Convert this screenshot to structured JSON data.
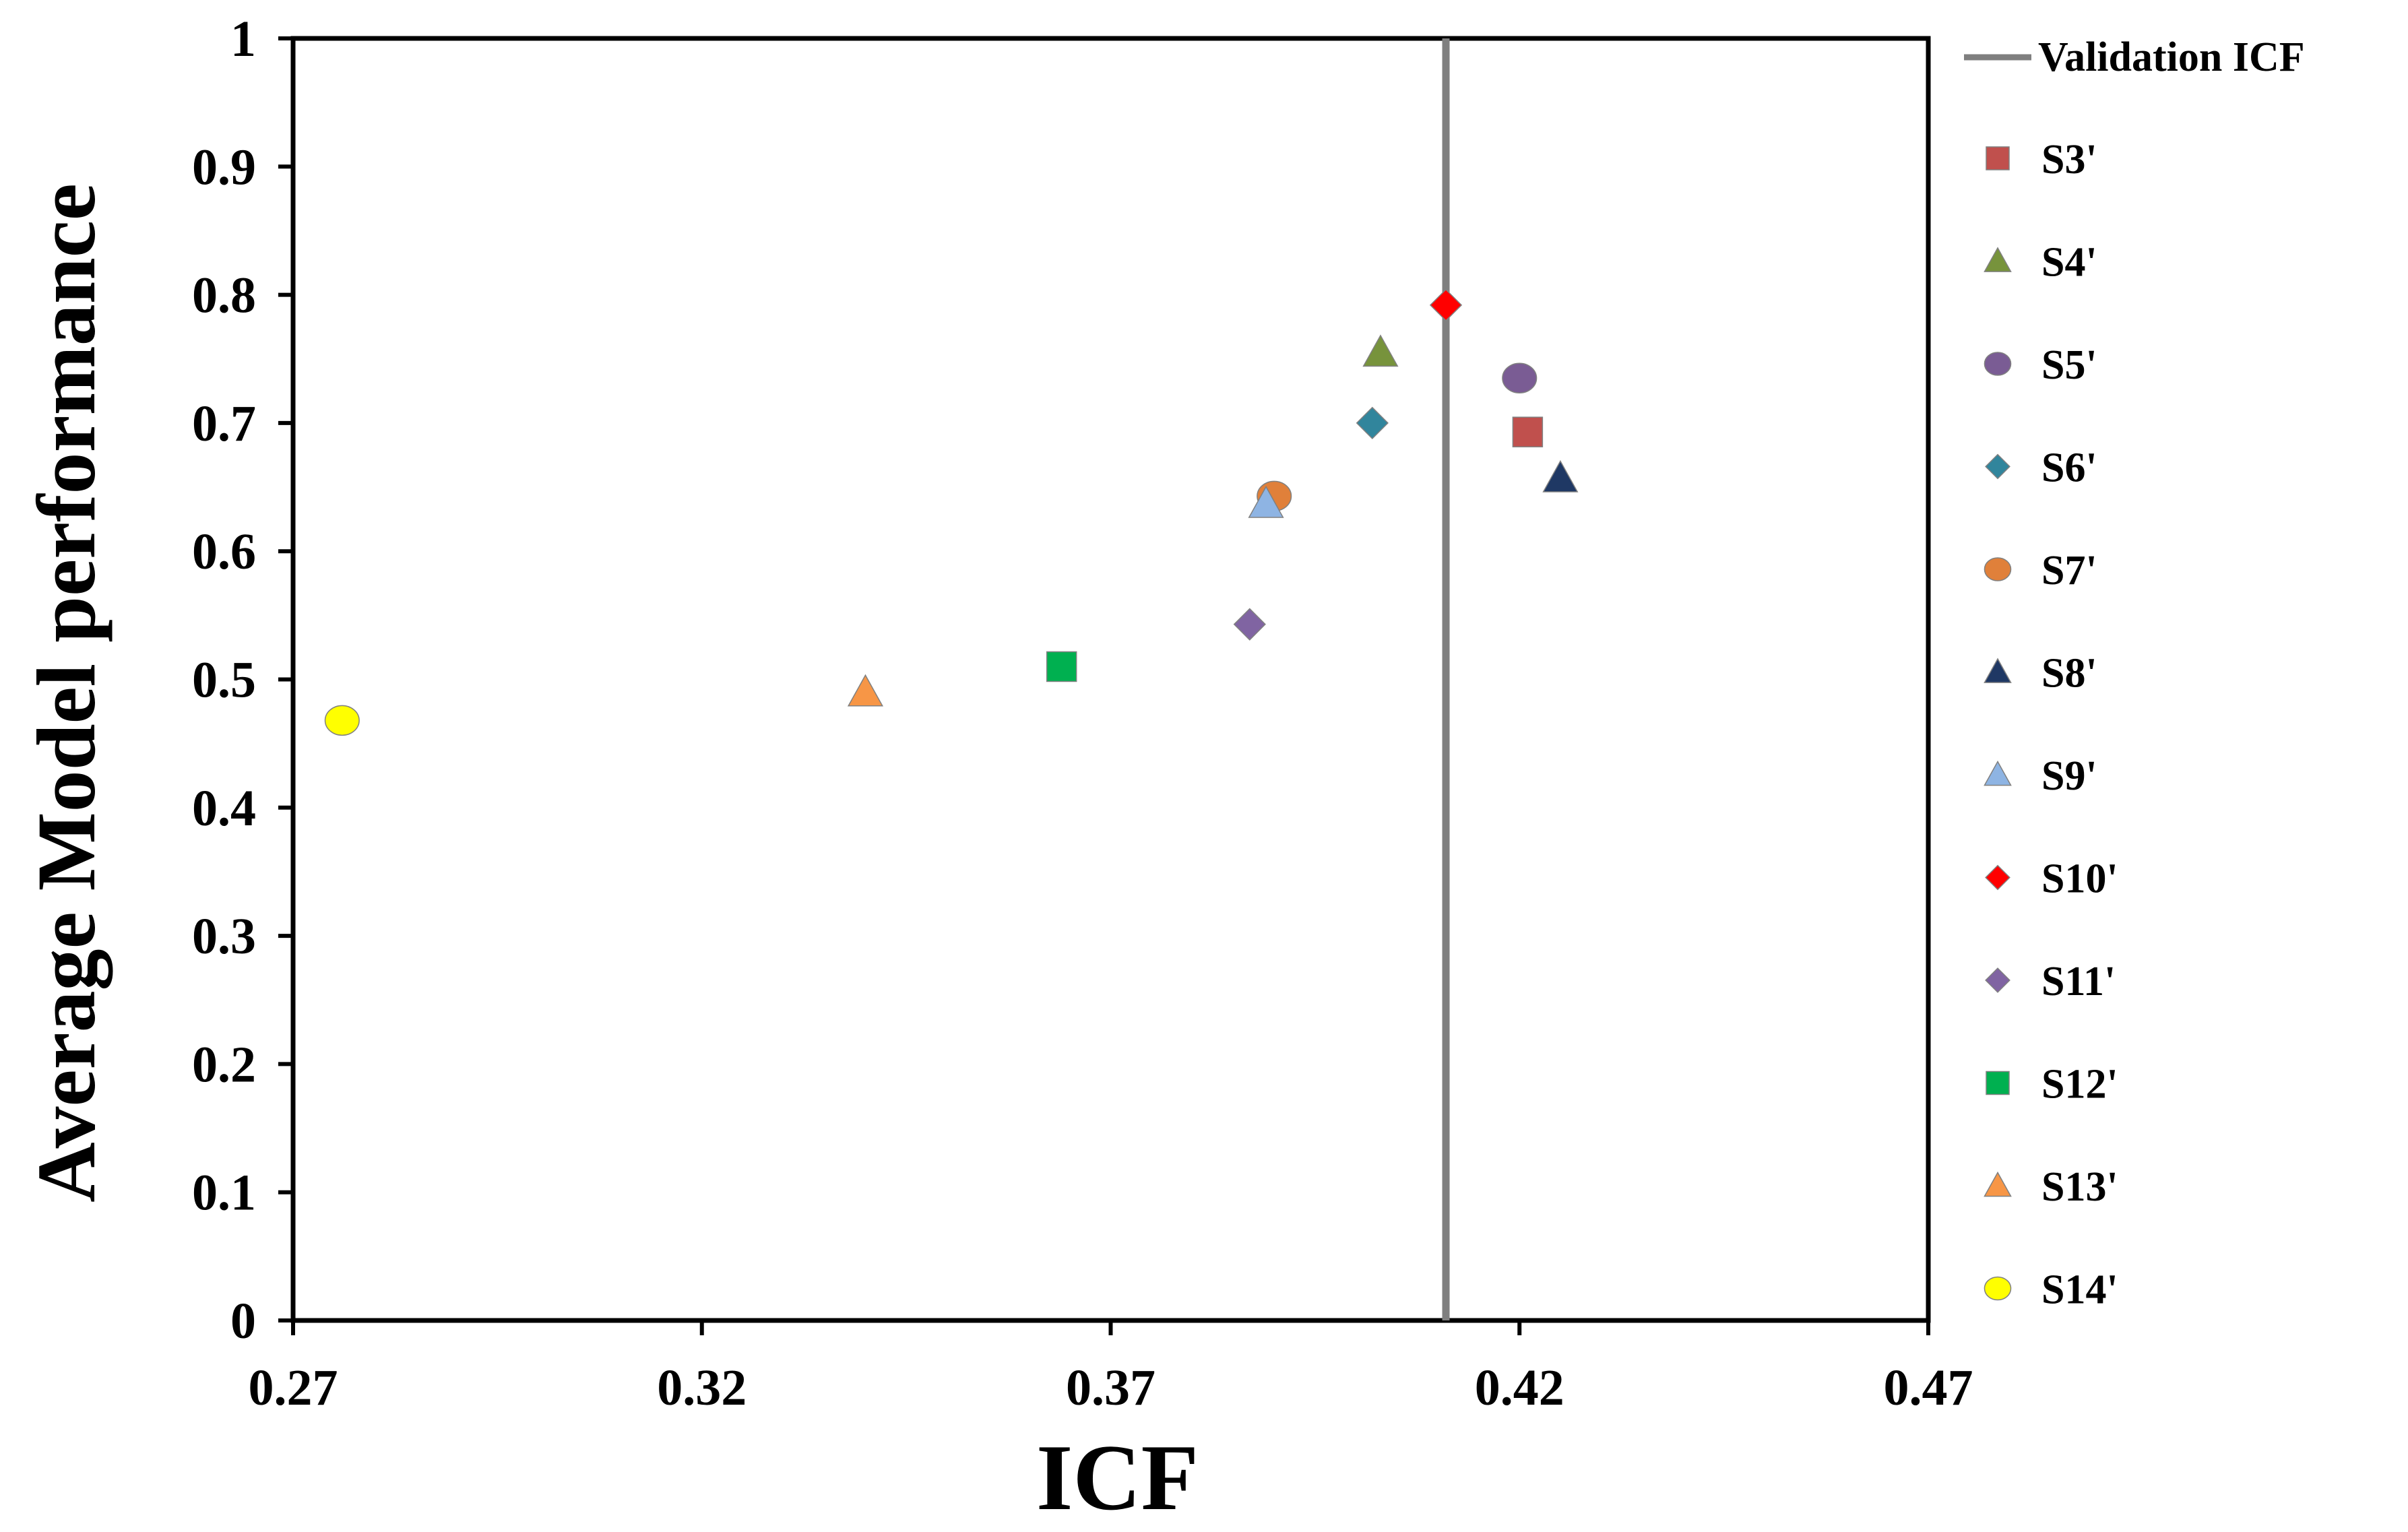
{
  "chart_data": {
    "type": "scatter",
    "xlabel": "ICF",
    "ylabel": "Average Model performance",
    "xlim": [
      0.27,
      0.47
    ],
    "ylim": [
      0,
      1
    ],
    "x_ticks": [
      "0.27",
      "0.32",
      "0.37",
      "0.42",
      "0.47"
    ],
    "y_ticks": [
      "0",
      "0.1",
      "0.2",
      "0.3",
      "0.4",
      "0.5",
      "0.6",
      "0.7",
      "0.8",
      "0.9",
      "1"
    ],
    "grid": false,
    "legend_position": "right",
    "reference_line": {
      "name": "Validation ICF",
      "x": 0.411,
      "color": "#7f7f7f"
    },
    "series": [
      {
        "name": "S3'",
        "marker": "square",
        "color": "#c0504d",
        "x": 0.421,
        "y": 0.693
      },
      {
        "name": "S4'",
        "marker": "triangle",
        "color": "#77933c",
        "x": 0.403,
        "y": 0.755
      },
      {
        "name": "S5'",
        "marker": "circle",
        "color": "#7a5c94",
        "x": 0.42,
        "y": 0.735
      },
      {
        "name": "S6'",
        "marker": "diamond",
        "color": "#31859c",
        "x": 0.402,
        "y": 0.7
      },
      {
        "name": "S7'",
        "marker": "circle",
        "color": "#e0803a",
        "x": 0.39,
        "y": 0.643
      },
      {
        "name": "S8'",
        "marker": "triangle",
        "color": "#1f3864",
        "x": 0.425,
        "y": 0.657
      },
      {
        "name": "S9'",
        "marker": "triangle",
        "color": "#8eb4e3",
        "x": 0.389,
        "y": 0.637
      },
      {
        "name": "S10'",
        "marker": "diamond",
        "color": "#ff0000",
        "x": 0.411,
        "y": 0.792
      },
      {
        "name": "S11'",
        "marker": "diamond",
        "color": "#8064a2",
        "x": 0.387,
        "y": 0.543
      },
      {
        "name": "S12'",
        "marker": "square",
        "color": "#00b050",
        "x": 0.364,
        "y": 0.51
      },
      {
        "name": "S13'",
        "marker": "triangle",
        "color": "#f79646",
        "x": 0.34,
        "y": 0.49
      },
      {
        "name": "S14'",
        "marker": "circle",
        "color": "#ffff00",
        "x": 0.276,
        "y": 0.468
      }
    ]
  }
}
